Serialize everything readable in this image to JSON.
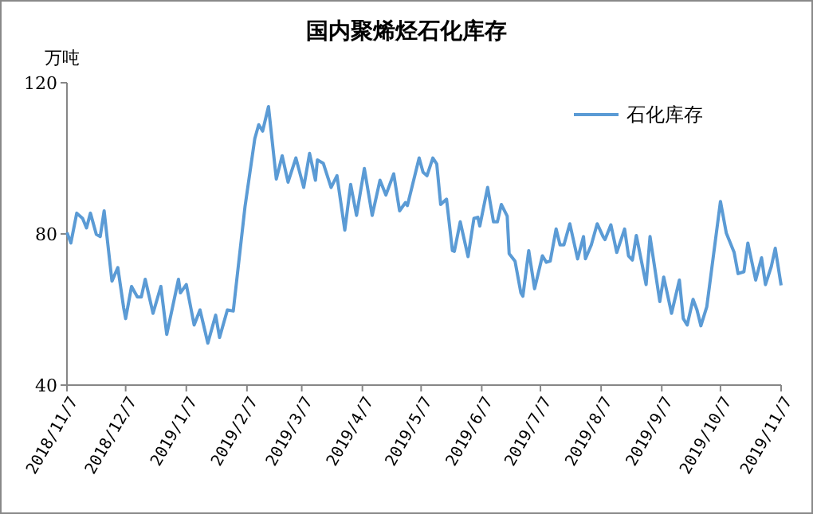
{
  "chart_data": {
    "type": "line",
    "title": "国内聚烯烃石化库存",
    "ylabel": "万吨",
    "legend": "top right",
    "grid": false,
    "marker": "none",
    "line_style": "solid",
    "ylim": [
      40,
      120
    ],
    "yticks": [
      40,
      80,
      120
    ],
    "xlim": [
      "2018-11-07",
      "2019-11-07"
    ],
    "xticks": [
      {
        "value": "2018-11-07",
        "label": "2018/11/7"
      },
      {
        "value": "2018-12-07",
        "label": "2018/12/7"
      },
      {
        "value": "2019-01-07",
        "label": "2019/1/7"
      },
      {
        "value": "2019-02-07",
        "label": "2019/2/7"
      },
      {
        "value": "2019-03-07",
        "label": "2019/3/7"
      },
      {
        "value": "2019-04-07",
        "label": "2019/4/7"
      },
      {
        "value": "2019-05-07",
        "label": "2019/5/7"
      },
      {
        "value": "2019-06-07",
        "label": "2019/6/7"
      },
      {
        "value": "2019-07-07",
        "label": "2019/7/7"
      },
      {
        "value": "2019-08-07",
        "label": "2019/8/7"
      },
      {
        "value": "2019-09-07",
        "label": "2019/9/7"
      },
      {
        "value": "2019-10-07",
        "label": "2019/10/7"
      },
      {
        "value": "2019-11-07",
        "label": "2019/11/7"
      }
    ],
    "x": [
      "2018-11-07",
      "2018-11-09",
      "2018-11-12",
      "2018-11-15",
      "2018-11-17",
      "2018-11-19",
      "2018-11-22",
      "2018-11-24",
      "2018-11-26",
      "2018-11-30",
      "2018-12-03",
      "2018-12-06",
      "2018-12-07",
      "2018-12-10",
      "2018-12-13",
      "2018-12-15",
      "2018-12-17",
      "2018-12-21",
      "2018-12-25",
      "2018-12-28",
      "2019-01-03",
      "2019-01-04",
      "2019-01-07",
      "2019-01-11",
      "2019-01-14",
      "2019-01-18",
      "2019-01-22",
      "2019-01-24",
      "2019-01-28",
      "2019-01-31",
      "2019-02-06",
      "2019-02-11",
      "2019-02-13",
      "2019-02-15",
      "2019-02-18",
      "2019-02-22",
      "2019-02-25",
      "2019-02-28",
      "2019-03-04",
      "2019-03-08",
      "2019-03-11",
      "2019-03-14",
      "2019-03-15",
      "2019-03-18",
      "2019-03-22",
      "2019-03-25",
      "2019-03-29",
      "2019-04-01",
      "2019-04-04",
      "2019-04-08",
      "2019-04-12",
      "2019-04-16",
      "2019-04-19",
      "2019-04-23",
      "2019-04-26",
      "2019-04-29",
      "2019-04-30",
      "2019-05-06",
      "2019-05-08",
      "2019-05-10",
      "2019-05-13",
      "2019-05-15",
      "2019-05-17",
      "2019-05-20",
      "2019-05-23",
      "2019-05-24",
      "2019-05-27",
      "2019-05-31",
      "2019-06-03",
      "2019-06-05",
      "2019-06-06",
      "2019-06-10",
      "2019-06-13",
      "2019-06-15",
      "2019-06-17",
      "2019-06-20",
      "2019-06-21",
      "2019-06-24",
      "2019-06-27",
      "2019-06-28",
      "2019-07-01",
      "2019-07-04",
      "2019-07-08",
      "2019-07-10",
      "2019-07-12",
      "2019-07-15",
      "2019-07-17",
      "2019-07-19",
      "2019-07-22",
      "2019-07-26",
      "2019-07-29",
      "2019-07-30",
      "2019-08-02",
      "2019-08-05",
      "2019-08-08",
      "2019-08-09",
      "2019-08-12",
      "2019-08-15",
      "2019-08-19",
      "2019-08-21",
      "2019-08-23",
      "2019-08-25",
      "2019-08-30",
      "2019-09-01",
      "2019-09-06",
      "2019-09-08",
      "2019-09-12",
      "2019-09-16",
      "2019-09-18",
      "2019-09-20",
      "2019-09-23",
      "2019-09-25",
      "2019-09-27",
      "2019-09-30",
      "2019-10-07",
      "2019-10-10",
      "2019-10-14",
      "2019-10-16",
      "2019-10-19",
      "2019-10-21",
      "2019-10-25",
      "2019-10-28",
      "2019-10-30",
      "2019-11-02",
      "2019-11-04",
      "2019-11-07"
    ],
    "series": [
      {
        "name": "石化库存",
        "color": "#5b9bd5",
        "values": [
          80.4,
          77.6,
          85.5,
          84.1,
          81.6,
          85.5,
          79.9,
          79.3,
          86.1,
          67.5,
          71.1,
          60.4,
          57.6,
          66.1,
          63.3,
          63.3,
          68.0,
          59.0,
          66.1,
          53.4,
          68.0,
          64.4,
          66.6,
          55.9,
          59.9,
          51.1,
          58.5,
          52.6,
          59.9,
          59.6,
          87.2,
          105.2,
          108.9,
          107.2,
          113.7,
          94.5,
          100.7,
          93.7,
          100.1,
          92.3,
          101.3,
          94.2,
          99.6,
          98.7,
          92.3,
          95.4,
          81.0,
          93.1,
          84.9,
          97.3,
          84.9,
          94.2,
          90.3,
          95.9,
          86.1,
          88.3,
          87.5,
          100.1,
          96.3,
          95.4,
          100.1,
          98.5,
          87.8,
          89.2,
          75.6,
          75.4,
          83.2,
          74.0,
          84.1,
          84.4,
          82.1,
          92.3,
          83.2,
          83.2,
          87.8,
          84.7,
          74.8,
          72.8,
          64.4,
          63.5,
          75.6,
          65.5,
          74.2,
          72.5,
          72.8,
          81.3,
          77.1,
          77.1,
          82.7,
          73.4,
          79.3,
          73.4,
          77.1,
          82.7,
          79.3,
          78.5,
          82.4,
          75.1,
          81.3,
          74.2,
          73.1,
          79.6,
          66.6,
          79.3,
          62.1,
          68.6,
          59.0,
          67.8,
          57.6,
          55.9,
          62.7,
          59.9,
          55.7,
          60.7,
          88.6,
          80.2,
          75.1,
          69.5,
          70.0,
          77.6,
          67.8,
          73.7,
          66.6,
          71.4,
          76.2,
          66.4
        ]
      }
    ]
  }
}
